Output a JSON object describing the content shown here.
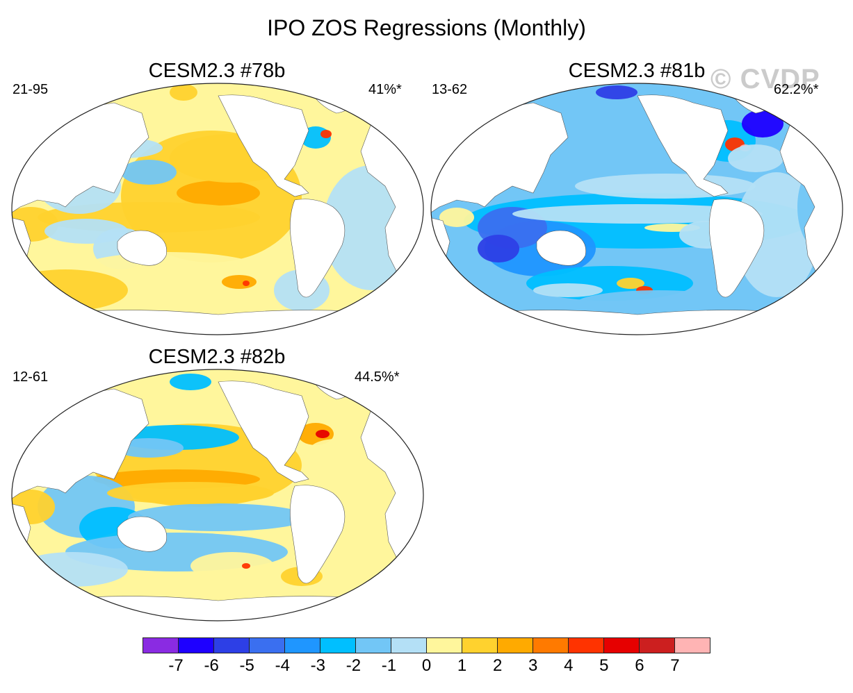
{
  "title": "IPO ZOS Regressions (Monthly)",
  "watermark": "© CVDP",
  "panels": [
    {
      "title": "CESM2.3 #78b",
      "years": "21-95",
      "percent": "41%*",
      "theme": "warm"
    },
    {
      "title": "CESM2.3 #81b",
      "years": "13-62",
      "percent": "62.2%*",
      "theme": "cool"
    },
    {
      "title": "CESM2.3 #82b",
      "years": "12-61",
      "percent": "44.5%*",
      "theme": "mixed"
    }
  ],
  "colorbar": {
    "colors": [
      "#8a2be2",
      "#1e00ff",
      "#2d3fe6",
      "#3a6ff0",
      "#1f96ff",
      "#00bfff",
      "#72c6f6",
      "#b4e0f6",
      "#fff69c",
      "#ffd22e",
      "#ffaa00",
      "#ff7a00",
      "#ff3300",
      "#e60000",
      "#cc1f1f",
      "#ffb4b4"
    ],
    "labels": [
      "-7",
      "-6",
      "-5",
      "-4",
      "-3",
      "-2",
      "-1",
      "0",
      "1",
      "2",
      "3",
      "4",
      "5",
      "6",
      "7"
    ]
  }
}
